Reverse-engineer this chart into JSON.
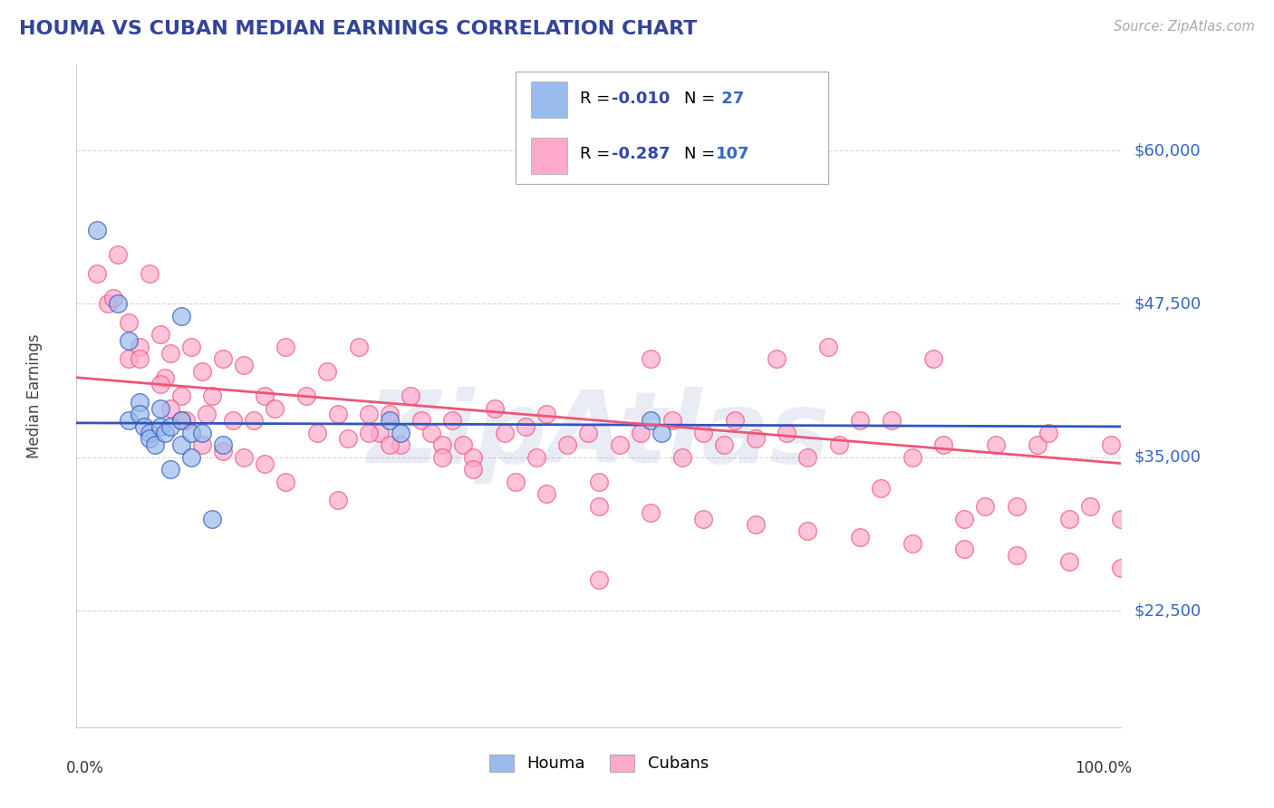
{
  "title": "HOUMA VS CUBAN MEDIAN EARNINGS CORRELATION CHART",
  "source_text": "Source: ZipAtlas.com",
  "ylabel": "Median Earnings",
  "x_left_label": "0.0%",
  "x_right_label": "100.0%",
  "y_ticks": [
    22500,
    35000,
    47500,
    60000
  ],
  "y_tick_labels": [
    "$22,500",
    "$35,000",
    "$47,500",
    "$60,000"
  ],
  "x_range": [
    0.0,
    1.0
  ],
  "y_min": 13000,
  "y_max": 67000,
  "houma_R": -0.01,
  "houma_N": 27,
  "cuban_R": -0.287,
  "cuban_N": 107,
  "houma_dot_color": "#99BBEE",
  "cuban_dot_color": "#FFAACC",
  "houma_line_color": "#3355BB",
  "cuban_line_color": "#EE5577",
  "grid_color": "#CCCCCC",
  "title_color": "#334499",
  "tick_label_color": "#3366CC",
  "source_color": "#AAAAAA",
  "watermark_color": "#BBCCEE",
  "watermark_text": "ZipAtlas",
  "legend_label_houma": "Houma",
  "legend_label_cuban": "Cubans",
  "legend_r_color": "#3344AA",
  "legend_n_color": "#3366CC",
  "houma_x": [
    0.02,
    0.04,
    0.05,
    0.05,
    0.06,
    0.06,
    0.065,
    0.07,
    0.07,
    0.075,
    0.08,
    0.08,
    0.085,
    0.09,
    0.09,
    0.1,
    0.1,
    0.11,
    0.11,
    0.12,
    0.13,
    0.14,
    0.3,
    0.31,
    0.55,
    0.56,
    0.1
  ],
  "houma_y": [
    53500,
    47500,
    44500,
    38000,
    39500,
    38500,
    37500,
    37000,
    36500,
    36000,
    39000,
    37500,
    37000,
    37500,
    34000,
    36000,
    38000,
    37000,
    35000,
    37000,
    30000,
    36000,
    38000,
    37000,
    38000,
    37000,
    46500
  ],
  "cuban_x": [
    0.03,
    0.04,
    0.05,
    0.06,
    0.07,
    0.08,
    0.085,
    0.09,
    0.1,
    0.105,
    0.11,
    0.12,
    0.125,
    0.13,
    0.14,
    0.15,
    0.16,
    0.17,
    0.18,
    0.19,
    0.2,
    0.22,
    0.23,
    0.24,
    0.25,
    0.26,
    0.27,
    0.28,
    0.29,
    0.3,
    0.31,
    0.32,
    0.33,
    0.34,
    0.35,
    0.36,
    0.37,
    0.38,
    0.4,
    0.41,
    0.43,
    0.44,
    0.45,
    0.47,
    0.49,
    0.5,
    0.52,
    0.54,
    0.55,
    0.57,
    0.58,
    0.6,
    0.62,
    0.63,
    0.65,
    0.67,
    0.68,
    0.7,
    0.72,
    0.73,
    0.75,
    0.77,
    0.78,
    0.8,
    0.82,
    0.83,
    0.85,
    0.87,
    0.88,
    0.9,
    0.92,
    0.93,
    0.95,
    0.97,
    0.99,
    1.0,
    0.02,
    0.035,
    0.05,
    0.06,
    0.08,
    0.09,
    0.1,
    0.12,
    0.14,
    0.16,
    0.18,
    0.2,
    0.25,
    0.28,
    0.3,
    0.35,
    0.38,
    0.42,
    0.45,
    0.5,
    0.55,
    0.6,
    0.65,
    0.7,
    0.75,
    0.8,
    0.85,
    0.9,
    0.95,
    1.0,
    0.5
  ],
  "cuban_y": [
    47500,
    51500,
    43000,
    44000,
    50000,
    45000,
    41500,
    43500,
    40000,
    38000,
    44000,
    42000,
    38500,
    40000,
    43000,
    38000,
    42500,
    38000,
    40000,
    39000,
    44000,
    40000,
    37000,
    42000,
    38500,
    36500,
    44000,
    38500,
    37000,
    38500,
    36000,
    40000,
    38000,
    37000,
    36000,
    38000,
    36000,
    35000,
    39000,
    37000,
    37500,
    35000,
    38500,
    36000,
    37000,
    33000,
    36000,
    37000,
    43000,
    38000,
    35000,
    37000,
    36000,
    38000,
    36500,
    43000,
    37000,
    35000,
    44000,
    36000,
    38000,
    32500,
    38000,
    35000,
    43000,
    36000,
    30000,
    31000,
    36000,
    31000,
    36000,
    37000,
    30000,
    31000,
    36000,
    30000,
    50000,
    48000,
    46000,
    43000,
    41000,
    39000,
    38000,
    36000,
    35500,
    35000,
    34500,
    33000,
    31500,
    37000,
    36000,
    35000,
    34000,
    33000,
    32000,
    31000,
    30500,
    30000,
    29500,
    29000,
    28500,
    28000,
    27500,
    27000,
    26500,
    26000,
    25000
  ]
}
